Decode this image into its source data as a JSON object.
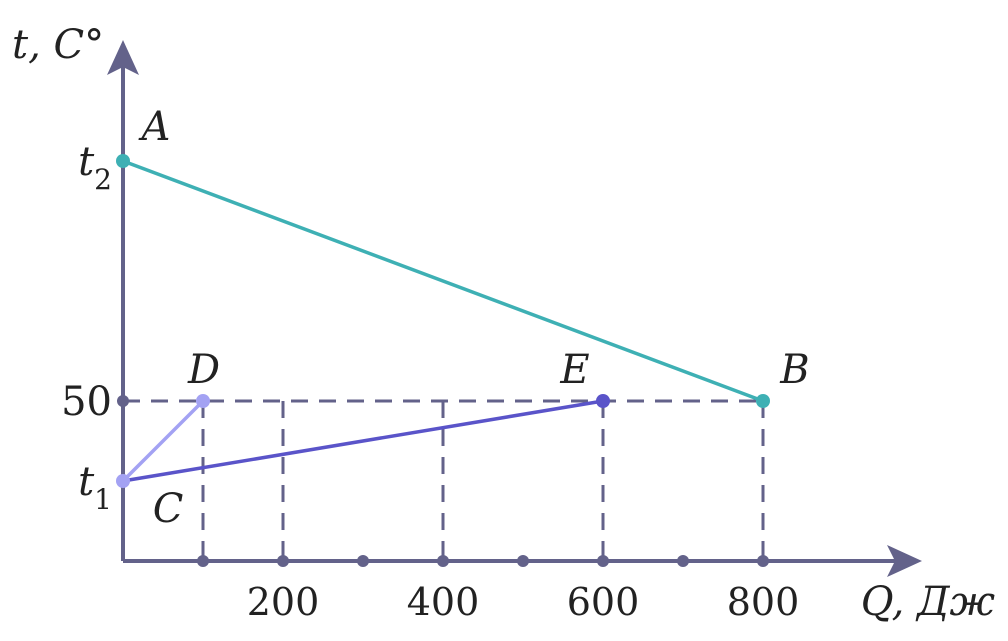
{
  "chart_data": {
    "type": "line",
    "title": "",
    "ylabel": "t, C°",
    "xlabel": "Q, Дж",
    "xlim": [
      0,
      1000
    ],
    "ticks_x": [
      100,
      200,
      300,
      400,
      500,
      600,
      700,
      800
    ],
    "tick_labels_x": [
      {
        "value": 200,
        "label": "200"
      },
      {
        "value": 400,
        "label": "400"
      },
      {
        "value": 600,
        "label": "600"
      },
      {
        "value": 800,
        "label": "800"
      }
    ],
    "tick_labels_y": [
      {
        "key": "t2",
        "base": "t",
        "sub": "2"
      },
      {
        "key": "50",
        "base": "50",
        "sub": ""
      },
      {
        "key": "t1",
        "base": "t",
        "sub": "1"
      }
    ],
    "points": [
      {
        "name": "A",
        "x": 0,
        "y": "t2",
        "color": "#3eb0b4"
      },
      {
        "name": "B",
        "x": 800,
        "y": 50,
        "color": "#3eb0b4"
      },
      {
        "name": "C",
        "x": 0,
        "y": "t1",
        "color": "#a3a2f3"
      },
      {
        "name": "D",
        "x": 100,
        "y": 50,
        "color": "#a3a2f3"
      },
      {
        "name": "E",
        "x": 600,
        "y": 50,
        "color": "#5a54c9"
      }
    ],
    "segments": [
      {
        "from": "A",
        "to": "B",
        "color": "#3eb0b4"
      },
      {
        "from": "C",
        "to": "D",
        "color": "#a3a2f3"
      },
      {
        "from": "C",
        "to": "E",
        "color": "#5a54c9"
      }
    ],
    "guides": {
      "horizontal_at": 50,
      "vertical_at": [
        100,
        200,
        400,
        600,
        800
      ]
    },
    "axis_color": "#63628a",
    "grid": false
  }
}
